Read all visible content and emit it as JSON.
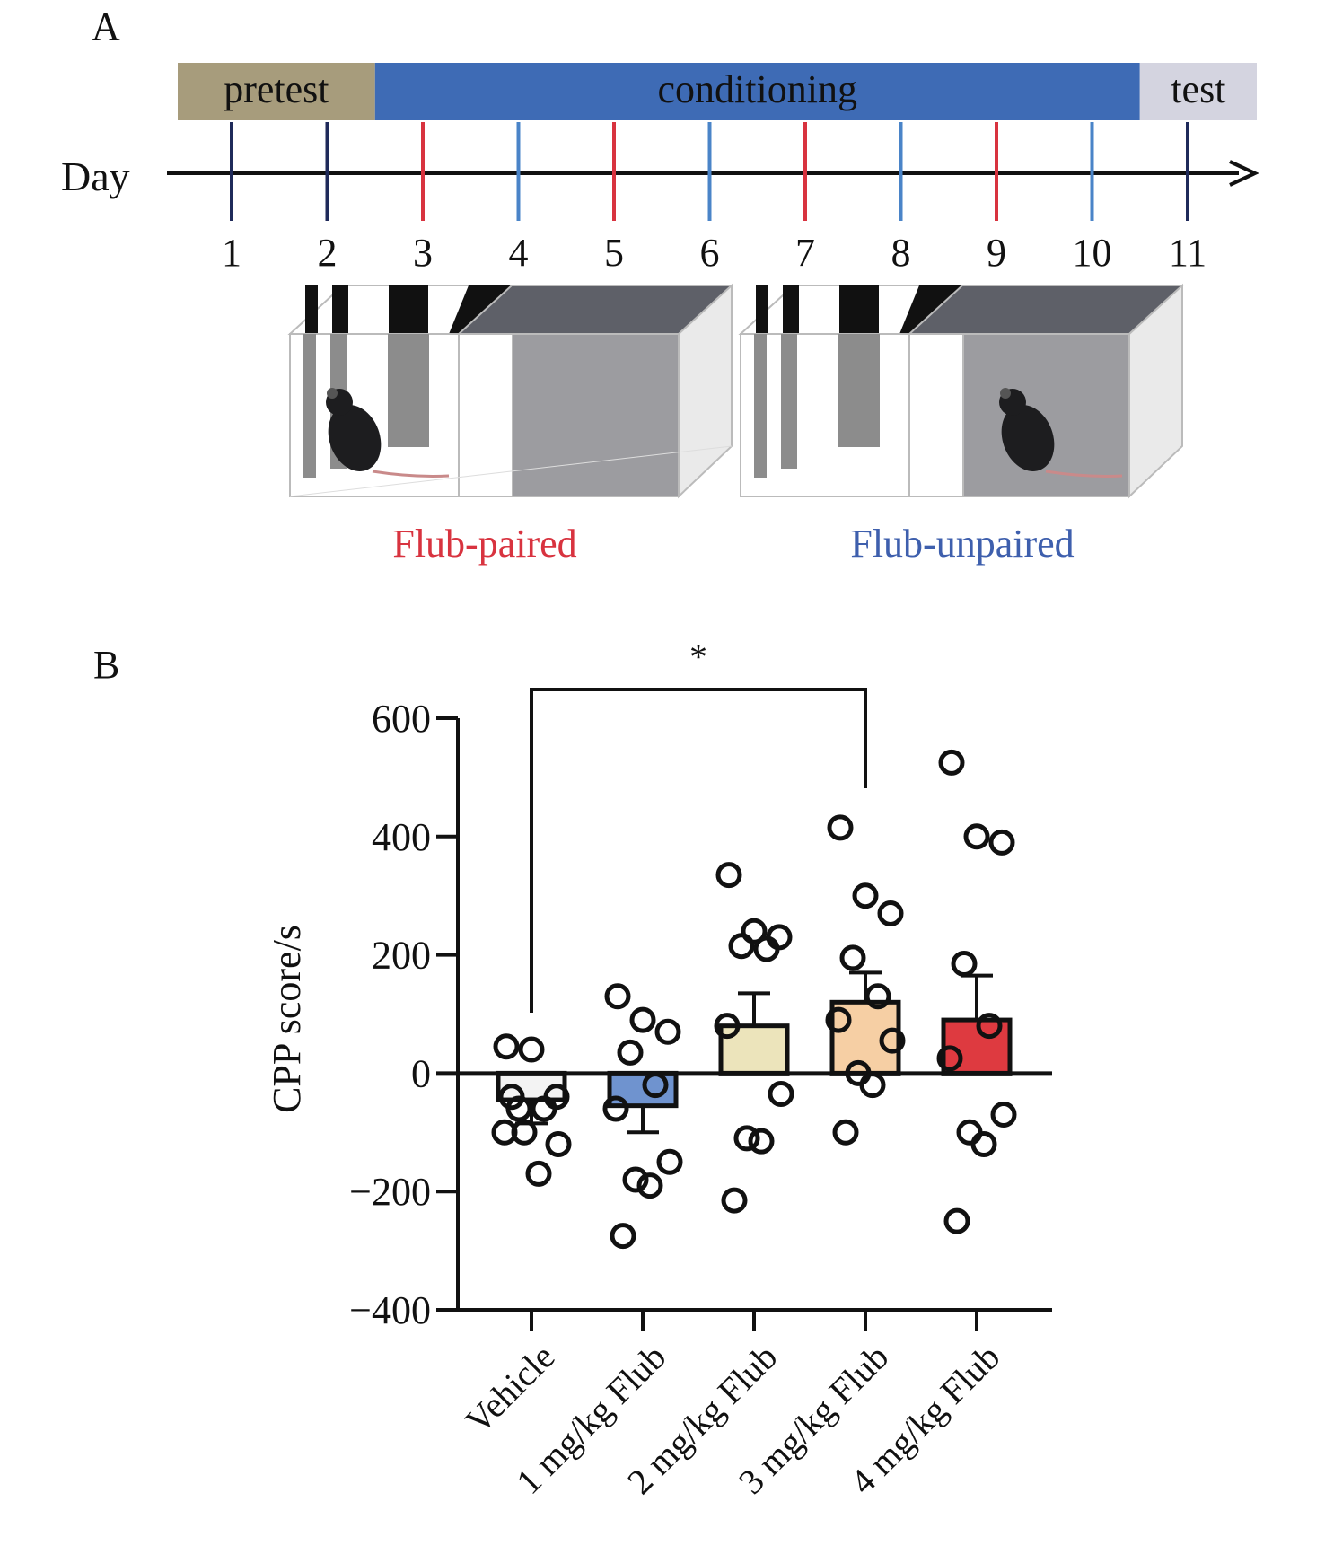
{
  "panel_a": {
    "letter": "A",
    "phases": [
      {
        "label": "pretest",
        "color": "#a79c7c",
        "start_day": 1,
        "end_day": 2
      },
      {
        "label": "conditioning",
        "color": "#3e6bb5",
        "start_day": 3,
        "end_day": 10
      },
      {
        "label": "test",
        "color": "#d4d4e0",
        "start_day": 11,
        "end_day": 11
      }
    ],
    "timeline_label": "Day",
    "days": [
      {
        "label": "1",
        "type": "neutral"
      },
      {
        "label": "2",
        "type": "neutral"
      },
      {
        "label": "3",
        "type": "paired"
      },
      {
        "label": "4",
        "type": "unpaired"
      },
      {
        "label": "5",
        "type": "paired"
      },
      {
        "label": "6",
        "type": "unpaired"
      },
      {
        "label": "7",
        "type": "paired"
      },
      {
        "label": "8",
        "type": "unpaired"
      },
      {
        "label": "9",
        "type": "paired"
      },
      {
        "label": "10",
        "type": "unpaired"
      },
      {
        "label": "11",
        "type": "neutral"
      }
    ],
    "marker_colors": {
      "neutral": "#1f2a5a",
      "paired": "#d8333f",
      "unpaired": "#4a84c8"
    },
    "conditions": [
      {
        "label": "Flub-paired",
        "color": "#d8333f",
        "mouse_side": "striped"
      },
      {
        "label": "Flub-unpaired",
        "color": "#3e5fad",
        "mouse_side": "gray"
      }
    ]
  },
  "panel_b": {
    "letter": "B",
    "chart_data": {
      "type": "bar",
      "ylabel": "CPP score/s",
      "ylim": [
        -400,
        600
      ],
      "yticks": [
        -400,
        -200,
        0,
        200,
        400,
        600
      ],
      "categories": [
        "Vehicle",
        "1 mg/kg Flub",
        "2 mg/kg Flub",
        "3 mg/kg Flub",
        "4 mg/kg Flub"
      ],
      "means": [
        -45,
        -55,
        80,
        120,
        90
      ],
      "sem": [
        40,
        45,
        55,
        50,
        75
      ],
      "bar_colors": [
        "#f3f3f3",
        "#6f93cf",
        "#ece4bb",
        "#f6cfa4",
        "#de3a40"
      ],
      "points": [
        [
          45,
          40,
          -40,
          -60,
          -60,
          -100,
          -120,
          -100,
          -170,
          -40
        ],
        [
          130,
          90,
          70,
          35,
          -20,
          -60,
          -150,
          -180,
          -190,
          -275
        ],
        [
          335,
          240,
          230,
          215,
          210,
          80,
          -35,
          -110,
          -115,
          -215
        ],
        [
          415,
          300,
          270,
          195,
          130,
          90,
          55,
          0,
          -20,
          -100
        ],
        [
          525,
          400,
          390,
          185,
          80,
          25,
          -70,
          -100,
          -120,
          -250
        ]
      ],
      "significance": {
        "from": 0,
        "to": 3,
        "label": "*"
      }
    }
  }
}
